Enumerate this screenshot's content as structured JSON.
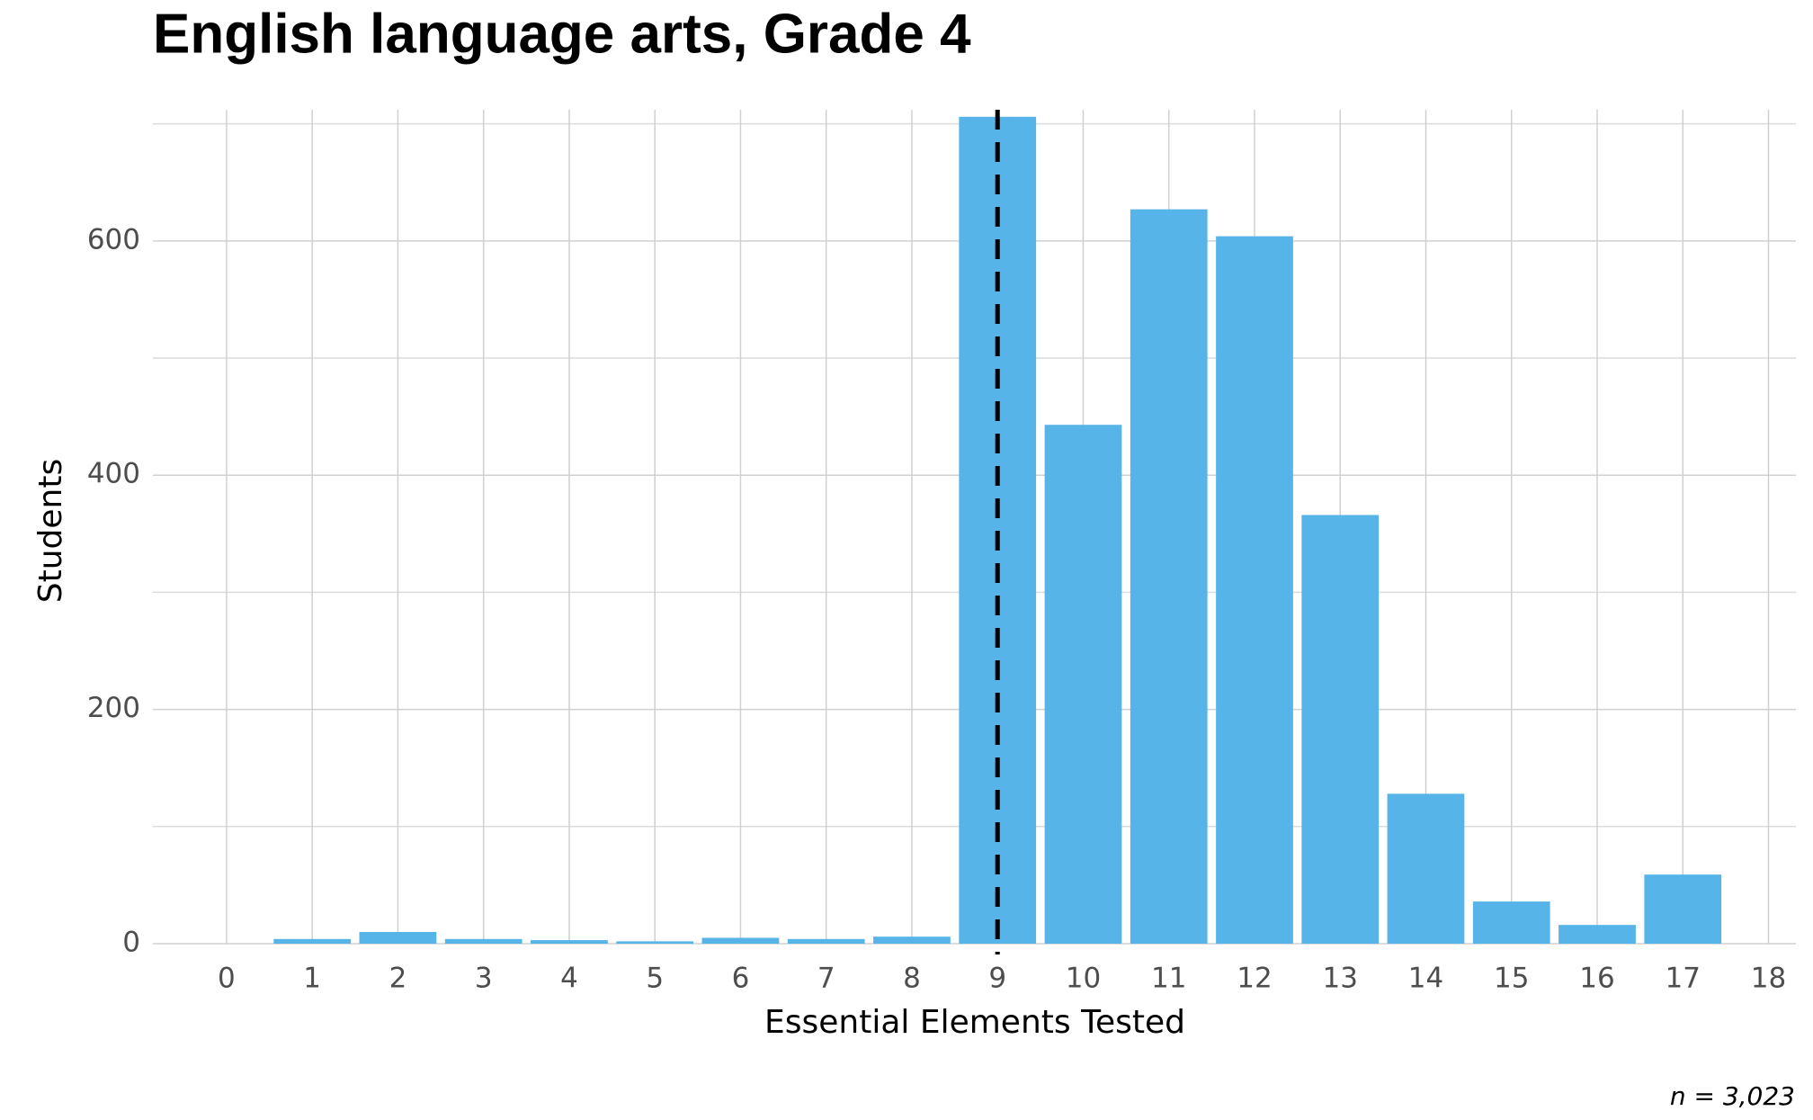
{
  "chart_data": {
    "type": "bar",
    "title": "English language arts, Grade 4",
    "x_label": "Essential Elements Tested",
    "y_label": "Students",
    "x": [
      0,
      1,
      2,
      3,
      4,
      5,
      6,
      7,
      8,
      9,
      10,
      11,
      12,
      13,
      14,
      15,
      16,
      17,
      18
    ],
    "values": [
      0,
      4,
      10,
      4,
      3,
      2,
      5,
      4,
      6,
      706,
      443,
      627,
      604,
      366,
      128,
      36,
      16,
      59,
      0
    ],
    "color": "#56b4e9",
    "xlim": [
      -0.86,
      18.32
    ],
    "xticks": [
      0,
      1,
      2,
      3,
      4,
      5,
      6,
      7,
      8,
      9,
      10,
      11,
      12,
      13,
      14,
      15,
      16,
      17,
      18
    ],
    "ylim": [
      0,
      712
    ],
    "yticks": [
      0,
      200,
      400,
      600
    ],
    "minor_yticks": [
      100,
      300,
      500,
      700
    ],
    "grid": true,
    "vline": 9,
    "annotation": "n = 3,023"
  }
}
